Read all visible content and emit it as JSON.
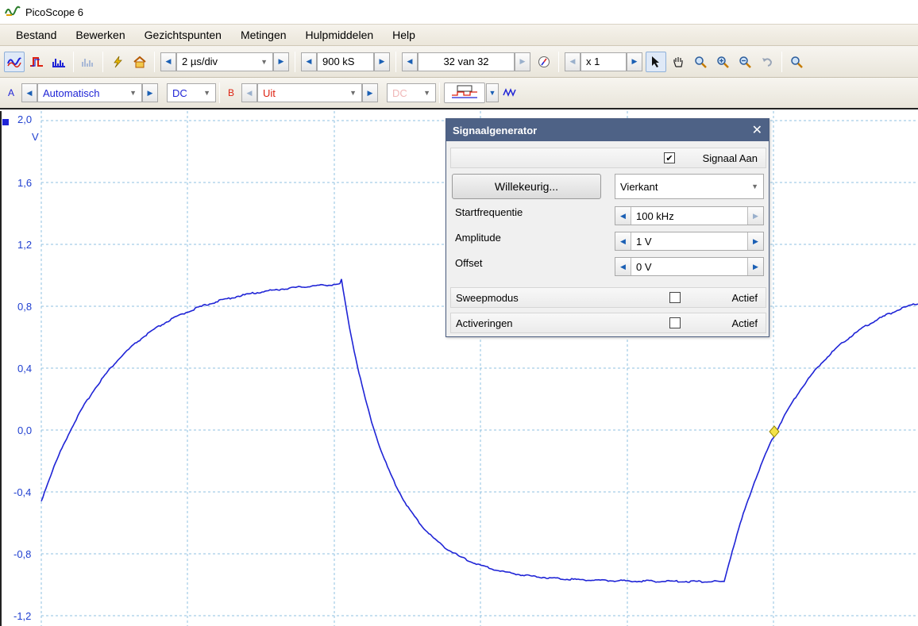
{
  "window": {
    "title": "PicoScope 6"
  },
  "menu": [
    "Bestand",
    "Bewerken",
    "Gezichtspunten",
    "Metingen",
    "Hulpmiddelen",
    "Help"
  ],
  "toolbar1": {
    "timebase": "2 µs/div",
    "samples": "900 kS",
    "buffer": "32 van 32",
    "zoom": "x 1"
  },
  "toolbar2": {
    "channel_a": {
      "letter": "A",
      "range": "Automatisch",
      "coupling": "DC"
    },
    "channel_b": {
      "letter": "B",
      "range": "Uit",
      "coupling": "DC"
    }
  },
  "plot": {
    "y_ticks": [
      "2,0",
      "1,6",
      "1,2",
      "0,8",
      "0,4",
      "0,0",
      "-0,4",
      "-0,8",
      "-1,2"
    ],
    "y_unit": "V",
    "colors": {
      "trace": "#1f24d6",
      "grid": "#8fc0e0",
      "trigger_marker": "#f3e24a"
    }
  },
  "signal_generator": {
    "title": "Signaalgenerator",
    "signal_on_label": "Signaal Aan",
    "signal_on_checked": true,
    "arbitrary_button": "Willekeurig...",
    "waveform": "Vierkant",
    "start_frequency_label": "Startfrequentie",
    "start_frequency": "100 kHz",
    "amplitude_label": "Amplitude",
    "amplitude": "1 V",
    "offset_label": "Offset",
    "offset": "0 V",
    "sweep_label": "Sweepmodus",
    "sweep_active_label": "Actief",
    "sweep_checked": false,
    "triggers_label": "Activeringen",
    "triggers_active_label": "Actief",
    "triggers_checked": false
  }
}
